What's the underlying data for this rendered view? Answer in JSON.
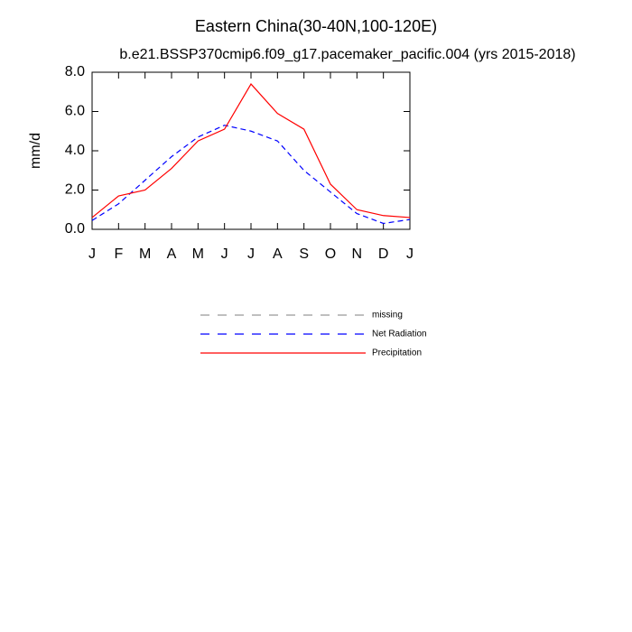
{
  "chart_data": {
    "type": "line",
    "title": "Eastern China(30-40N,100-120E)",
    "subtitle": "b.e21.BSSP370cmip6.f09_g17.pacemaker_pacific.004 (yrs 2015-2018)",
    "y_label": "mm/d",
    "categories": [
      "J",
      "F",
      "M",
      "A",
      "M",
      "J",
      "J",
      "A",
      "S",
      "O",
      "N",
      "D",
      "J"
    ],
    "series": [
      {
        "name": "missing",
        "color": "#999999",
        "dash": true,
        "values": [
          null,
          null,
          null,
          null,
          null,
          null,
          null,
          null,
          null,
          null,
          null,
          null,
          null
        ]
      },
      {
        "name": "Net Radiation",
        "color": "#0000ff",
        "dash": true,
        "values": [
          0.45,
          1.3,
          2.5,
          3.7,
          4.7,
          5.3,
          5.0,
          4.5,
          3.0,
          1.9,
          0.8,
          0.3,
          0.5
        ]
      },
      {
        "name": "Precipitation",
        "color": "#ff0000",
        "dash": false,
        "values": [
          0.6,
          1.7,
          2.0,
          3.1,
          4.5,
          5.1,
          7.4,
          5.9,
          5.1,
          2.3,
          1.0,
          0.7,
          0.6
        ]
      }
    ],
    "ylim": [
      0,
      8
    ],
    "yticks": [
      {
        "value": 0,
        "label": "0.0"
      },
      {
        "value": 2,
        "label": "2.0"
      },
      {
        "value": 4,
        "label": "4.0"
      },
      {
        "value": 6,
        "label": "6.0"
      },
      {
        "value": 8,
        "label": "8.0"
      }
    ]
  }
}
